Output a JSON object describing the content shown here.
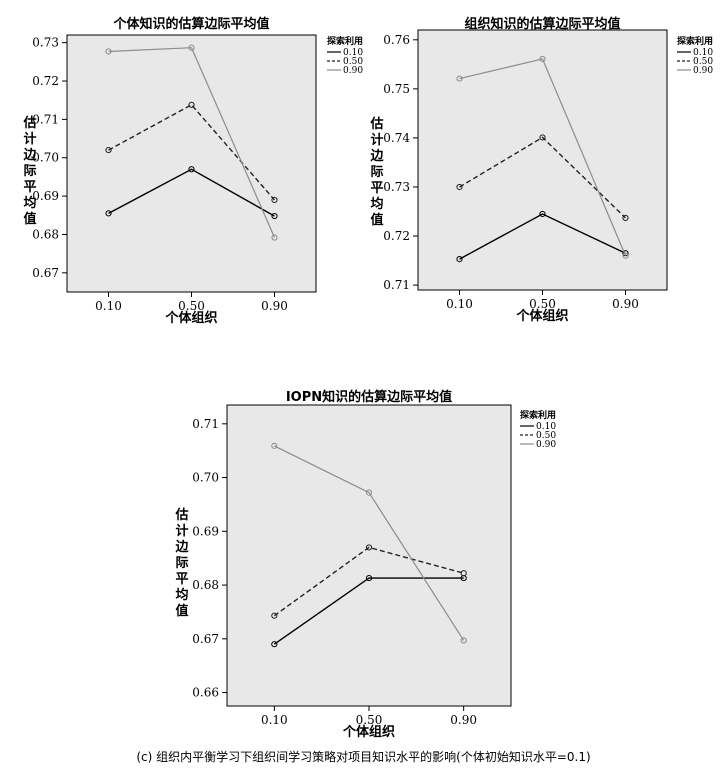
{
  "caption": "(c) 组织内平衡学习下组织间学习策略对项目知识水平的影响(个体初始知识水平=0.1)",
  "colors": {
    "plot_bg": "#e8e8e8",
    "s010": "#000000",
    "s050": "#222222",
    "s090": "#8c8c8c"
  },
  "chart_data": [
    {
      "type": "line",
      "title": "个体知识的估算边际平均值",
      "xlabel": "个体组织",
      "ylabel": "估计边际平均值",
      "categories": [
        "0.10",
        "0.50",
        "0.90"
      ],
      "ylim": [
        0.665,
        0.732
      ],
      "yticks": [
        "0.67",
        "0.68",
        "0.69",
        "0.70",
        "0.71",
        "0.72",
        "0.73"
      ],
      "legend_title": "探索利用",
      "series": [
        {
          "name": "0.10",
          "values": [
            0.6855,
            0.697,
            0.6848
          ]
        },
        {
          "name": "0.50",
          "values": [
            0.702,
            0.7138,
            0.689
          ]
        },
        {
          "name": "0.90",
          "values": [
            0.7277,
            0.7287,
            0.6792
          ]
        }
      ]
    },
    {
      "type": "line",
      "title": "组织知识的估算边际平均值",
      "xlabel": "个体组织",
      "ylabel": "估计边际平均值",
      "categories": [
        "0.10",
        "0.50",
        "0.90"
      ],
      "ylim": [
        0.709,
        0.762
      ],
      "yticks": [
        "0.71",
        "0.72",
        "0.73",
        "0.74",
        "0.75",
        "0.76"
      ],
      "legend_title": "探索利用",
      "series": [
        {
          "name": "0.10",
          "values": [
            0.7153,
            0.7245,
            0.7165
          ]
        },
        {
          "name": "0.50",
          "values": [
            0.73,
            0.7401,
            0.7237
          ]
        },
        {
          "name": "0.90",
          "values": [
            0.7521,
            0.7561,
            0.716
          ]
        }
      ]
    },
    {
      "type": "line",
      "title": "IOPN知识的估算边际平均值",
      "xlabel": "个体组织",
      "ylabel": "估计边际平均值",
      "categories": [
        "0.10",
        "0.50",
        "0.90"
      ],
      "ylim": [
        0.6575,
        0.7135
      ],
      "yticks": [
        "0.66",
        "0.67",
        "0.68",
        "0.69",
        "0.70",
        "0.71"
      ],
      "legend_title": "探索利用",
      "series": [
        {
          "name": "0.10",
          "values": [
            0.669,
            0.6813,
            0.6813
          ]
        },
        {
          "name": "0.50",
          "values": [
            0.6743,
            0.687,
            0.6822
          ]
        },
        {
          "name": "0.90",
          "values": [
            0.7059,
            0.6972,
            0.6697
          ]
        }
      ]
    }
  ]
}
